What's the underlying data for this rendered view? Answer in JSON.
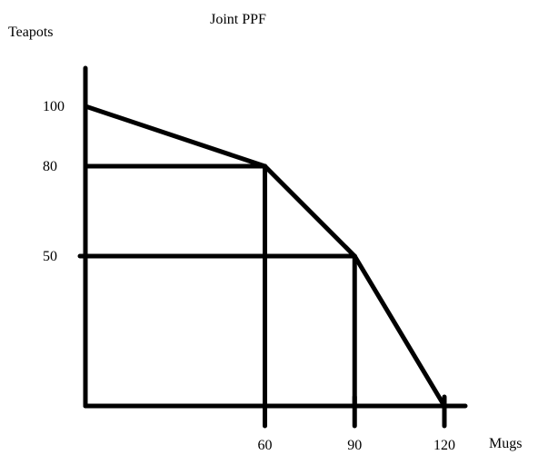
{
  "chart_data": {
    "type": "line",
    "title": "Joint PPF",
    "ylabel": "Teapots",
    "xlabel": "Mugs",
    "xlim": [
      0,
      120
    ],
    "ylim": [
      0,
      100
    ],
    "x_ticks": [
      60,
      90,
      120
    ],
    "y_ticks": [
      100,
      80,
      50
    ],
    "series": [
      {
        "x": [
          0,
          60,
          90,
          120
        ],
        "y": [
          100,
          80,
          50,
          0
        ]
      }
    ],
    "guides": [
      {
        "x": 60,
        "y": 80
      },
      {
        "x": 90,
        "y": 50
      }
    ],
    "grid": false,
    "colors": {
      "line": "#000000",
      "background": "#ffffff"
    }
  }
}
